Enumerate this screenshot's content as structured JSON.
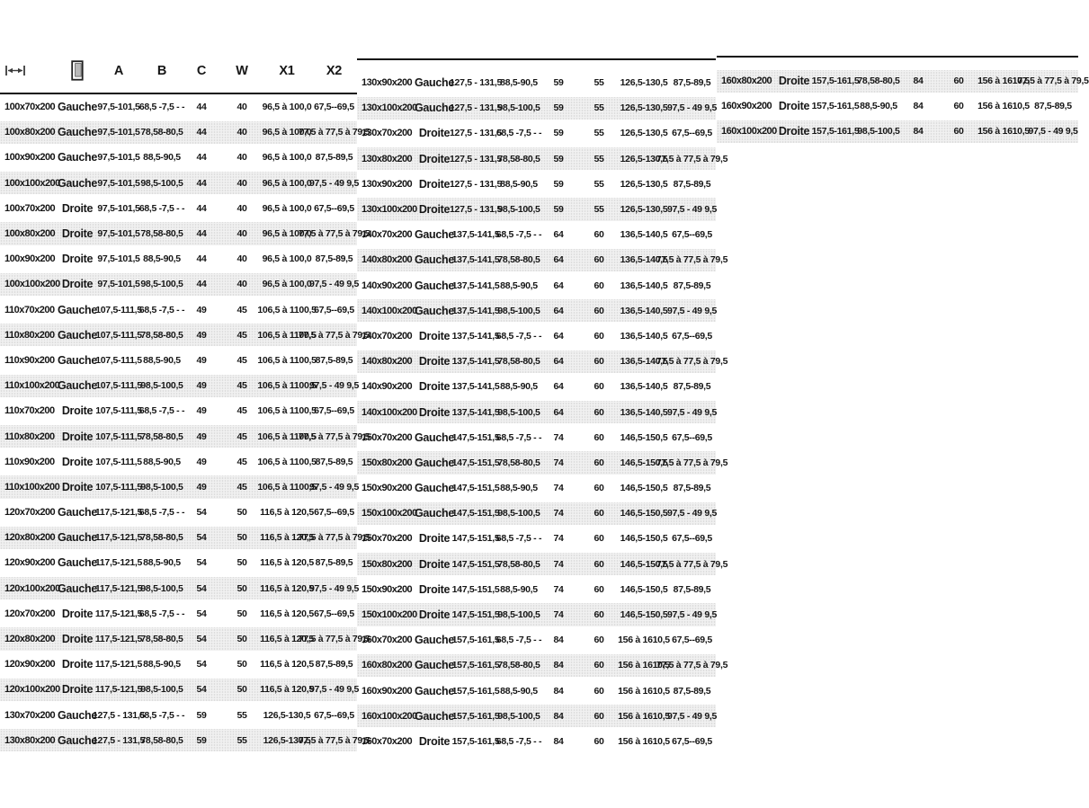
{
  "meta": {
    "language": "fr",
    "text_color": "#161616",
    "stripe_color": "#f1f1f1",
    "border_color": "#101010"
  },
  "header": {
    "size_icon": "width-dimension-icon",
    "side_icon": "door-icon",
    "columns": [
      "A",
      "B",
      "C",
      "W",
      "X1",
      "X2"
    ]
  },
  "tables": [
    {
      "name": "table-1",
      "rows": [
        [
          "100x70x200",
          "Gauche",
          "97,5-101,5",
          "68,5 -7,5 - -",
          "44",
          "40",
          "96,5 à 100,0",
          "67,5--69,5"
        ],
        [
          "100x80x200",
          "Gauche",
          "97,5-101,5",
          "78,58-80,5",
          "44",
          "40",
          "96,5 à 100,0",
          "77,5 à 77,5 à 79,5"
        ],
        [
          "100x90x200",
          "Gauche",
          "97,5-101,5",
          "88,5-90,5",
          "44",
          "40",
          "96,5 à 100,0",
          "87,5-89,5"
        ],
        [
          "100x100x200",
          "Gauche",
          "97,5-101,5",
          "98,5-100,5",
          "44",
          "40",
          "96,5 à 100,0",
          "97,5 - 49 9,5"
        ],
        [
          "100x70x200",
          "Droite",
          "97,5-101,5",
          "68,5 -7,5 - -",
          "44",
          "40",
          "96,5 à 100,0",
          "67,5--69,5"
        ],
        [
          "100x80x200",
          "Droite",
          "97,5-101,5",
          "78,58-80,5",
          "44",
          "40",
          "96,5 à 100,0",
          "77,5 à 77,5 à 79,5"
        ],
        [
          "100x90x200",
          "Droite",
          "97,5-101,5",
          "88,5-90,5",
          "44",
          "40",
          "96,5 à 100,0",
          "87,5-89,5"
        ],
        [
          "100x100x200",
          "Droite",
          "97,5-101,5",
          "98,5-100,5",
          "44",
          "40",
          "96,5 à 100,0",
          "97,5 - 49 9,5"
        ],
        [
          "110x70x200",
          "Gauche",
          "107,5-111,5",
          "68,5 -7,5 - -",
          "49",
          "45",
          "106,5 à 1100,5",
          "67,5--69,5"
        ],
        [
          "110x80x200",
          "Gauche",
          "107,5-111,5",
          "78,58-80,5",
          "49",
          "45",
          "106,5 à 1100,5",
          "77,5 à 77,5 à 79,5"
        ],
        [
          "110x90x200",
          "Gauche",
          "107,5-111,5",
          "88,5-90,5",
          "49",
          "45",
          "106,5 à 1100,5",
          "87,5-89,5"
        ],
        [
          "110x100x200",
          "Gauche",
          "107,5-111,5",
          "98,5-100,5",
          "49",
          "45",
          "106,5 à 1100,5",
          "97,5 - 49 9,5"
        ],
        [
          "110x70x200",
          "Droite",
          "107,5-111,5",
          "68,5 -7,5 - -",
          "49",
          "45",
          "106,5 à 1100,5",
          "67,5--69,5"
        ],
        [
          "110x80x200",
          "Droite",
          "107,5-111,5",
          "78,58-80,5",
          "49",
          "45",
          "106,5 à 1100,5",
          "77,5 à 77,5 à 79,5"
        ],
        [
          "110x90x200",
          "Droite",
          "107,5-111,5",
          "88,5-90,5",
          "49",
          "45",
          "106,5 à 1100,5",
          "87,5-89,5"
        ],
        [
          "110x100x200",
          "Droite",
          "107,5-111,5",
          "98,5-100,5",
          "49",
          "45",
          "106,5 à 1100,5",
          "97,5 - 49 9,5"
        ],
        [
          "120x70x200",
          "Gauche",
          "117,5-121,5",
          "68,5 -7,5 - -",
          "54",
          "50",
          "116,5 à 120,5",
          "67,5--69,5"
        ],
        [
          "120x80x200",
          "Gauche",
          "117,5-121,5",
          "78,58-80,5",
          "54",
          "50",
          "116,5 à 120,5",
          "77,5 à 77,5 à 79,5"
        ],
        [
          "120x90x200",
          "Gauche",
          "117,5-121,5",
          "88,5-90,5",
          "54",
          "50",
          "116,5 à 120,5",
          "87,5-89,5"
        ],
        [
          "120x100x200",
          "Gauche",
          "117,5-121,5",
          "98,5-100,5",
          "54",
          "50",
          "116,5 à 120,5",
          "97,5 - 49 9,5"
        ],
        [
          "120x70x200",
          "Droite",
          "117,5-121,5",
          "68,5 -7,5 - -",
          "54",
          "50",
          "116,5 à 120,5",
          "67,5--69,5"
        ],
        [
          "120x80x200",
          "Droite",
          "117,5-121,5",
          "78,58-80,5",
          "54",
          "50",
          "116,5 à 120,5",
          "77,5 à 77,5 à 79,5"
        ],
        [
          "120x90x200",
          "Droite",
          "117,5-121,5",
          "88,5-90,5",
          "54",
          "50",
          "116,5 à 120,5",
          "87,5-89,5"
        ],
        [
          "120x100x200",
          "Droite",
          "117,5-121,5",
          "98,5-100,5",
          "54",
          "50",
          "116,5 à 120,5",
          "97,5 - 49 9,5"
        ],
        [
          "130x70x200",
          "Gauche",
          "127,5 - 131,5",
          "68,5 -7,5 - -",
          "59",
          "55",
          "126,5-130,5",
          "67,5--69,5"
        ],
        [
          "130x80x200",
          "Gauche",
          "127,5 - 131,5",
          "78,58-80,5",
          "59",
          "55",
          "126,5-130,5",
          "77,5 à 77,5 à 79,5"
        ]
      ]
    },
    {
      "name": "table-2",
      "rows": [
        [
          "130x90x200",
          "Gauche",
          "127,5 - 131,5",
          "88,5-90,5",
          "59",
          "55",
          "126,5-130,5",
          "87,5-89,5"
        ],
        [
          "130x100x200",
          "Gauche",
          "127,5 - 131,5",
          "98,5-100,5",
          "59",
          "55",
          "126,5-130,5",
          "97,5 - 49 9,5"
        ],
        [
          "130x70x200",
          "Droite",
          "127,5 - 131,5",
          "68,5 -7,5 - -",
          "59",
          "55",
          "126,5-130,5",
          "67,5--69,5"
        ],
        [
          "130x80x200",
          "Droite",
          "127,5 - 131,5",
          "78,58-80,5",
          "59",
          "55",
          "126,5-130,5",
          "77,5 à 77,5 à 79,5"
        ],
        [
          "130x90x200",
          "Droite",
          "127,5 - 131,5",
          "88,5-90,5",
          "59",
          "55",
          "126,5-130,5",
          "87,5-89,5"
        ],
        [
          "130x100x200",
          "Droite",
          "127,5 - 131,5",
          "98,5-100,5",
          "59",
          "55",
          "126,5-130,5",
          "97,5 - 49 9,5"
        ],
        [
          "140x70x200",
          "Gauche",
          "137,5-141,5",
          "68,5 -7,5 - -",
          "64",
          "60",
          "136,5-140,5",
          "67,5--69,5"
        ],
        [
          "140x80x200",
          "Gauche",
          "137,5-141,5",
          "78,58-80,5",
          "64",
          "60",
          "136,5-140,5",
          "77,5 à 77,5 à 79,5"
        ],
        [
          "140x90x200",
          "Gauche",
          "137,5-141,5",
          "88,5-90,5",
          "64",
          "60",
          "136,5-140,5",
          "87,5-89,5"
        ],
        [
          "140x100x200",
          "Gauche",
          "137,5-141,5",
          "98,5-100,5",
          "64",
          "60",
          "136,5-140,5",
          "97,5 - 49 9,5"
        ],
        [
          "140x70x200",
          "Droite",
          "137,5-141,5",
          "68,5 -7,5 - -",
          "64",
          "60",
          "136,5-140,5",
          "67,5--69,5"
        ],
        [
          "140x80x200",
          "Droite",
          "137,5-141,5",
          "78,58-80,5",
          "64",
          "60",
          "136,5-140,5",
          "77,5 à 77,5 à 79,5"
        ],
        [
          "140x90x200",
          "Droite",
          "137,5-141,5",
          "88,5-90,5",
          "64",
          "60",
          "136,5-140,5",
          "87,5-89,5"
        ],
        [
          "140x100x200",
          "Droite",
          "137,5-141,5",
          "98,5-100,5",
          "64",
          "60",
          "136,5-140,5",
          "97,5 - 49 9,5"
        ],
        [
          "150x70x200",
          "Gauche",
          "147,5-151,5",
          "68,5 -7,5 - -",
          "74",
          "60",
          "146,5-150,5",
          "67,5--69,5"
        ],
        [
          "150x80x200",
          "Gauche",
          "147,5-151,5",
          "78,58-80,5",
          "74",
          "60",
          "146,5-150,5",
          "77,5 à 77,5 à 79,5"
        ],
        [
          "150x90x200",
          "Gauche",
          "147,5-151,5",
          "88,5-90,5",
          "74",
          "60",
          "146,5-150,5",
          "87,5-89,5"
        ],
        [
          "150x100x200",
          "Gauche",
          "147,5-151,5",
          "98,5-100,5",
          "74",
          "60",
          "146,5-150,5",
          "97,5 - 49 9,5"
        ],
        [
          "150x70x200",
          "Droite",
          "147,5-151,5",
          "68,5 -7,5 - -",
          "74",
          "60",
          "146,5-150,5",
          "67,5--69,5"
        ],
        [
          "150x80x200",
          "Droite",
          "147,5-151,5",
          "78,58-80,5",
          "74",
          "60",
          "146,5-150,5",
          "77,5 à 77,5 à 79,5"
        ],
        [
          "150x90x200",
          "Droite",
          "147,5-151,5",
          "88,5-90,5",
          "74",
          "60",
          "146,5-150,5",
          "87,5-89,5"
        ],
        [
          "150x100x200",
          "Droite",
          "147,5-151,5",
          "98,5-100,5",
          "74",
          "60",
          "146,5-150,5",
          "97,5 - 49 9,5"
        ],
        [
          "160x70x200",
          "Gauche",
          "157,5-161,5",
          "68,5 -7,5 - -",
          "84",
          "60",
          "156 à 1610,5",
          "67,5--69,5"
        ],
        [
          "160x80x200",
          "Gauche",
          "157,5-161,5",
          "78,58-80,5",
          "84",
          "60",
          "156 à 1610,5",
          "77,5 à 77,5 à 79,5"
        ],
        [
          "160x90x200",
          "Gauche",
          "157,5-161,5",
          "88,5-90,5",
          "84",
          "60",
          "156 à 1610,5",
          "87,5-89,5"
        ],
        [
          "160x100x200",
          "Gauche",
          "157,5-161,5",
          "98,5-100,5",
          "84",
          "60",
          "156 à 1610,5",
          "97,5 - 49 9,5"
        ],
        [
          "160x70x200",
          "Droite",
          "157,5-161,5",
          "68,5 -7,5 - -",
          "84",
          "60",
          "156 à 1610,5",
          "67,5--69,5"
        ]
      ]
    },
    {
      "name": "table-3",
      "rows": [
        [
          "160x80x200",
          "Droite",
          "157,5-161,5",
          "78,58-80,5",
          "84",
          "60",
          "156 à 1610,5",
          "77,5 à 77,5 à 79,5"
        ],
        [
          "160x90x200",
          "Droite",
          "157,5-161,5",
          "88,5-90,5",
          "84",
          "60",
          "156 à 1610,5",
          "87,5-89,5"
        ],
        [
          "160x100x200",
          "Droite",
          "157,5-161,5",
          "98,5-100,5",
          "84",
          "60",
          "156 à 1610,5",
          "97,5 - 49 9,5"
        ]
      ]
    }
  ]
}
